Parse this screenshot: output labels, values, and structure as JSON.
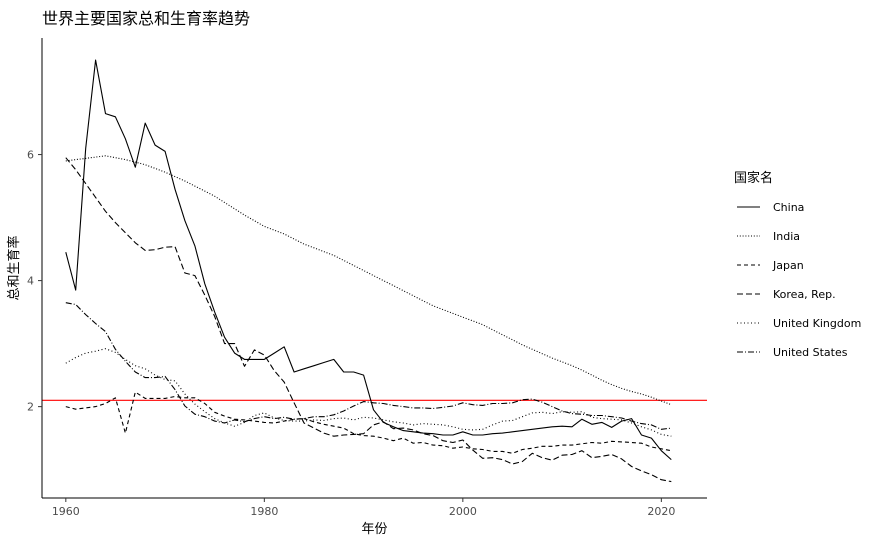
{
  "chart_data": {
    "type": "line",
    "title": "世界主要国家总和生育率趋势",
    "xlabel": "年份",
    "ylabel": "总和生育率",
    "xlim": [
      1957.6,
      2024.6
    ],
    "ylim": [
      0.55,
      7.85
    ],
    "x_ticks": [
      1960,
      1980,
      2000,
      2020
    ],
    "y_ticks": [
      2,
      4,
      6
    ],
    "grid": false,
    "reference_line": {
      "y": 2.1,
      "color": "#ff0000"
    },
    "legend": {
      "title": "国家名",
      "position": "right"
    },
    "x": [
      1960,
      1961,
      1962,
      1963,
      1964,
      1965,
      1966,
      1967,
      1968,
      1969,
      1970,
      1971,
      1972,
      1973,
      1974,
      1975,
      1976,
      1977,
      1978,
      1979,
      1980,
      1981,
      1982,
      1983,
      1984,
      1985,
      1986,
      1987,
      1988,
      1989,
      1990,
      1991,
      1992,
      1993,
      1994,
      1995,
      1996,
      1997,
      1998,
      1999,
      2000,
      2001,
      2002,
      2003,
      2004,
      2005,
      2006,
      2007,
      2008,
      2009,
      2010,
      2011,
      2012,
      2013,
      2014,
      2015,
      2016,
      2017,
      2018,
      2019,
      2020,
      2021
    ],
    "series": [
      {
        "name": "China",
        "dash": "",
        "values": [
          4.45,
          3.85,
          6.1,
          7.5,
          6.65,
          6.6,
          6.25,
          5.8,
          6.5,
          6.15,
          6.05,
          5.45,
          4.95,
          4.55,
          3.95,
          3.5,
          3.1,
          2.85,
          2.75,
          2.75,
          2.75,
          2.85,
          2.95,
          2.55,
          2.6,
          2.65,
          2.7,
          2.75,
          2.55,
          2.55,
          2.5,
          1.95,
          1.75,
          1.68,
          1.62,
          1.6,
          1.58,
          1.57,
          1.55,
          1.55,
          1.6,
          1.55,
          1.55,
          1.57,
          1.58,
          1.6,
          1.62,
          1.64,
          1.66,
          1.68,
          1.69,
          1.68,
          1.8,
          1.72,
          1.75,
          1.67,
          1.77,
          1.81,
          1.55,
          1.5,
          1.3,
          1.16
        ]
      },
      {
        "name": "India",
        "dash": "1,1.8",
        "values": [
          5.9,
          5.92,
          5.94,
          5.96,
          5.98,
          5.95,
          5.92,
          5.88,
          5.84,
          5.78,
          5.72,
          5.65,
          5.58,
          5.5,
          5.42,
          5.34,
          5.24,
          5.14,
          5.04,
          4.95,
          4.86,
          4.8,
          4.74,
          4.66,
          4.58,
          4.52,
          4.46,
          4.4,
          4.32,
          4.24,
          4.16,
          4.08,
          4.0,
          3.92,
          3.84,
          3.76,
          3.68,
          3.6,
          3.54,
          3.48,
          3.42,
          3.36,
          3.3,
          3.22,
          3.14,
          3.06,
          2.98,
          2.91,
          2.84,
          2.77,
          2.71,
          2.65,
          2.58,
          2.5,
          2.42,
          2.35,
          2.29,
          2.24,
          2.2,
          2.15,
          2.09,
          2.03
        ]
      },
      {
        "name": "Japan",
        "dash": "4,3",
        "values": [
          2.0,
          1.96,
          1.98,
          2.0,
          2.05,
          2.14,
          1.58,
          2.23,
          2.13,
          2.13,
          2.13,
          2.16,
          2.14,
          2.14,
          2.05,
          1.91,
          1.85,
          1.8,
          1.79,
          1.77,
          1.75,
          1.74,
          1.77,
          1.8,
          1.81,
          1.76,
          1.72,
          1.69,
          1.66,
          1.57,
          1.54,
          1.53,
          1.5,
          1.46,
          1.5,
          1.42,
          1.43,
          1.39,
          1.38,
          1.34,
          1.36,
          1.33,
          1.32,
          1.29,
          1.29,
          1.26,
          1.32,
          1.34,
          1.37,
          1.37,
          1.39,
          1.39,
          1.41,
          1.43,
          1.42,
          1.45,
          1.44,
          1.43,
          1.42,
          1.36,
          1.33,
          1.3
        ]
      },
      {
        "name": "Korea, Rep.",
        "dash": "6,3",
        "values": [
          5.95,
          5.76,
          5.54,
          5.32,
          5.1,
          4.92,
          4.76,
          4.6,
          4.48,
          4.49,
          4.53,
          4.54,
          4.12,
          4.08,
          3.77,
          3.43,
          3.0,
          3.0,
          2.64,
          2.9,
          2.82,
          2.57,
          2.39,
          2.06,
          1.74,
          1.66,
          1.58,
          1.53,
          1.55,
          1.56,
          1.57,
          1.71,
          1.76,
          1.65,
          1.66,
          1.63,
          1.57,
          1.54,
          1.46,
          1.43,
          1.47,
          1.31,
          1.18,
          1.19,
          1.16,
          1.09,
          1.13,
          1.26,
          1.19,
          1.15,
          1.23,
          1.24,
          1.3,
          1.19,
          1.21,
          1.24,
          1.17,
          1.05,
          0.98,
          0.92,
          0.84,
          0.81
        ]
      },
      {
        "name": "United Kingdom",
        "dash": "1,2.5",
        "values": [
          2.69,
          2.78,
          2.85,
          2.88,
          2.92,
          2.86,
          2.75,
          2.65,
          2.6,
          2.5,
          2.43,
          2.41,
          2.2,
          2.04,
          1.92,
          1.81,
          1.74,
          1.69,
          1.75,
          1.86,
          1.9,
          1.82,
          1.78,
          1.77,
          1.77,
          1.79,
          1.78,
          1.81,
          1.82,
          1.79,
          1.83,
          1.82,
          1.79,
          1.76,
          1.74,
          1.71,
          1.73,
          1.72,
          1.71,
          1.68,
          1.64,
          1.63,
          1.64,
          1.71,
          1.77,
          1.78,
          1.84,
          1.9,
          1.91,
          1.89,
          1.92,
          1.91,
          1.92,
          1.83,
          1.81,
          1.8,
          1.79,
          1.74,
          1.68,
          1.63,
          1.56,
          1.53
        ]
      },
      {
        "name": "United States",
        "dash": "6,2,1,2",
        "values": [
          3.65,
          3.62,
          3.46,
          3.32,
          3.19,
          2.91,
          2.72,
          2.55,
          2.46,
          2.46,
          2.48,
          2.27,
          2.01,
          1.88,
          1.84,
          1.77,
          1.74,
          1.79,
          1.76,
          1.81,
          1.84,
          1.81,
          1.83,
          1.8,
          1.81,
          1.84,
          1.84,
          1.87,
          1.93,
          2.01,
          2.08,
          2.06,
          2.05,
          2.02,
          2.0,
          1.98,
          1.98,
          1.97,
          1.99,
          2.01,
          2.06,
          2.03,
          2.02,
          2.05,
          2.05,
          2.06,
          2.11,
          2.12,
          2.07,
          2.0,
          1.93,
          1.89,
          1.88,
          1.86,
          1.86,
          1.84,
          1.82,
          1.77,
          1.73,
          1.71,
          1.64,
          1.66
        ]
      }
    ]
  }
}
